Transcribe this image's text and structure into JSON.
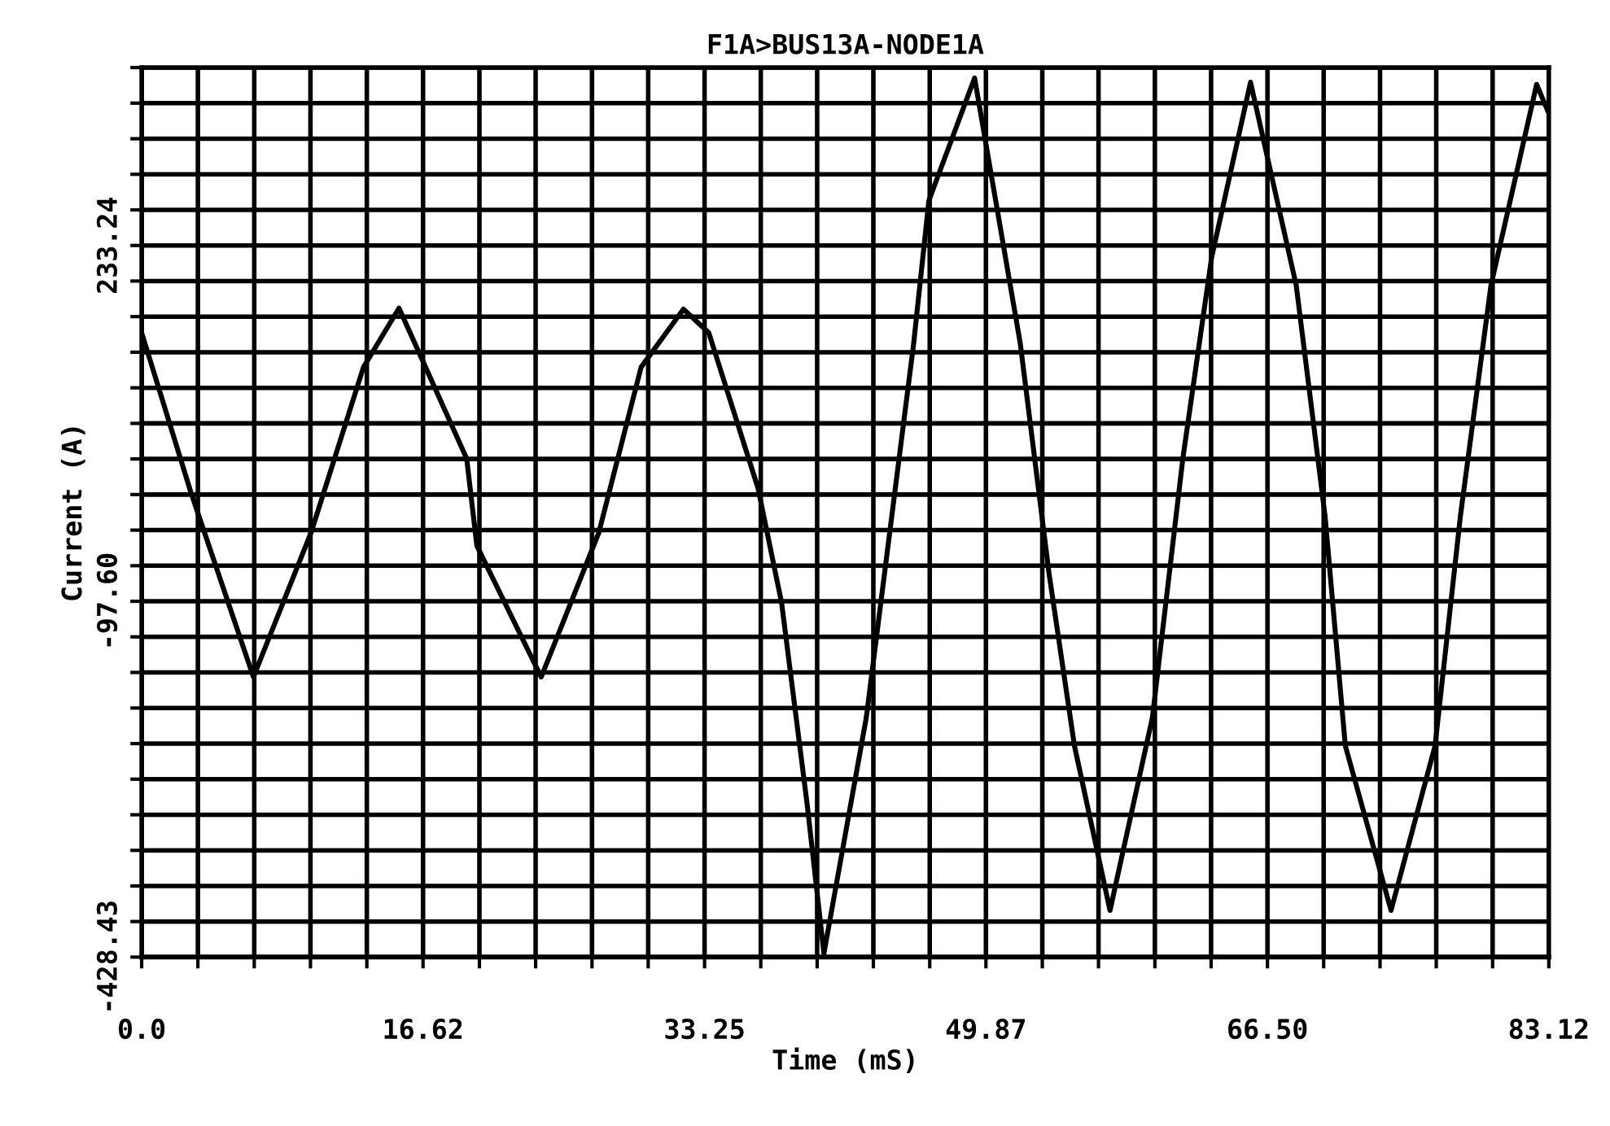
{
  "chart_data": {
    "type": "line",
    "title": "F1A>BUS13A-NODE1A",
    "xlabel": "Time (mS)",
    "ylabel": "Current (A)",
    "xlim": [
      0,
      83.12
    ],
    "ylim": [
      -428.43,
      398.66
    ],
    "xticks": [
      {
        "value": 0,
        "label": "0.0"
      },
      {
        "value": 3.32,
        "label": null
      },
      {
        "value": 6.65,
        "label": null
      },
      {
        "value": 9.97,
        "label": null
      },
      {
        "value": 13.3,
        "label": null
      },
      {
        "value": 16.62,
        "label": "16.62"
      },
      {
        "value": 19.95,
        "label": null
      },
      {
        "value": 23.27,
        "label": null
      },
      {
        "value": 26.6,
        "label": null
      },
      {
        "value": 29.92,
        "label": null
      },
      {
        "value": 33.25,
        "label": "33.25"
      },
      {
        "value": 36.57,
        "label": null
      },
      {
        "value": 39.9,
        "label": null
      },
      {
        "value": 43.22,
        "label": null
      },
      {
        "value": 46.55,
        "label": null
      },
      {
        "value": 49.87,
        "label": "49.87"
      },
      {
        "value": 53.2,
        "label": null
      },
      {
        "value": 56.52,
        "label": null
      },
      {
        "value": 59.85,
        "label": null
      },
      {
        "value": 63.17,
        "label": null
      },
      {
        "value": 66.5,
        "label": "66.50"
      },
      {
        "value": 69.82,
        "label": null
      },
      {
        "value": 73.15,
        "label": null
      },
      {
        "value": 76.47,
        "label": null
      },
      {
        "value": 79.8,
        "label": null
      },
      {
        "value": 83.12,
        "label": "83.12"
      }
    ],
    "yticks": [
      {
        "value": -428.43,
        "label": "-428.43"
      },
      {
        "value": -395.35,
        "label": null
      },
      {
        "value": -362.26,
        "label": null
      },
      {
        "value": -329.18,
        "label": null
      },
      {
        "value": -296.09,
        "label": null
      },
      {
        "value": -263.01,
        "label": null
      },
      {
        "value": -229.93,
        "label": null
      },
      {
        "value": -196.84,
        "label": null
      },
      {
        "value": -163.76,
        "label": null
      },
      {
        "value": -130.68,
        "label": null
      },
      {
        "value": -97.6,
        "label": "-97.60"
      },
      {
        "value": -64.52,
        "label": null
      },
      {
        "value": -31.43,
        "label": null
      },
      {
        "value": 1.65,
        "label": null
      },
      {
        "value": 34.74,
        "label": null
      },
      {
        "value": 67.82,
        "label": null
      },
      {
        "value": 100.9,
        "label": null
      },
      {
        "value": 133.99,
        "label": null
      },
      {
        "value": 167.07,
        "label": null
      },
      {
        "value": 200.16,
        "label": null
      },
      {
        "value": 233.24,
        "label": "233.24"
      },
      {
        "value": 266.32,
        "label": null
      },
      {
        "value": 299.41,
        "label": null
      },
      {
        "value": 332.49,
        "label": null
      },
      {
        "value": 365.58,
        "label": null
      },
      {
        "value": 398.66,
        "label": null
      }
    ],
    "grid": true,
    "legend": false,
    "series": [
      {
        "color": "#000000",
        "x": [
          0,
          2.9,
          6.6,
          10.0,
          13.1,
          15.2,
          19.2,
          19.8,
          23.6,
          27.0,
          29.5,
          32.0,
          33.5,
          36.4,
          37.8,
          39.3,
          40.3,
          42.8,
          45.6,
          46.5,
          49.2,
          51.9,
          53.6,
          55.1,
          57.2,
          59.7,
          61.5,
          63.2,
          65.5,
          68.2,
          69.9,
          71.1,
          73.8,
          76.4,
          77.9,
          79.7,
          82.4,
          83.12
        ],
        "values": [
          152,
          4,
          -168,
          -34,
          120,
          175,
          35,
          -46,
          -168,
          -34,
          120,
          174,
          152,
          8,
          -99,
          -285,
          -425,
          -206,
          142,
          275,
          389,
          142,
          -72,
          -232,
          -385,
          -206,
          35,
          222,
          385,
          196,
          -18,
          -232,
          -385,
          -232,
          -18,
          196,
          383,
          356
        ]
      }
    ]
  }
}
